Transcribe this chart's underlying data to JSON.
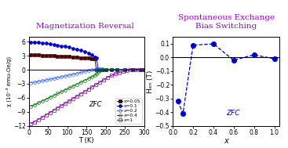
{
  "title_left": "Magnetization Reversal",
  "title_right": "Spontaneous Exchange\nBias Switching",
  "title_color": "#9900cc",
  "left_xlabel": "T (K)",
  "left_ylabel": "χ (10⁻³ emu-Oe/g)",
  "left_ylim": [
    -12,
    7
  ],
  "left_xlim": [
    0,
    300
  ],
  "right_xlabel": "x",
  "right_ylabel": "Hₑₙ (T)",
  "right_ylim": [
    -0.5,
    0.15
  ],
  "right_xlim": [
    0,
    1.05
  ],
  "zfc_label": "ZFC",
  "series": [
    {
      "label": "x=0.05",
      "color": "#4a0000",
      "marker": "s",
      "filled": true,
      "T": [
        5,
        15,
        25,
        35,
        45,
        55,
        65,
        75,
        85,
        95,
        105,
        115,
        125,
        135,
        145,
        155,
        165,
        172,
        176,
        181,
        190,
        200,
        215,
        230,
        250,
        270,
        290,
        300
      ],
      "chi": [
        3.2,
        3.18,
        3.14,
        3.1,
        3.06,
        3.02,
        2.98,
        2.93,
        2.88,
        2.83,
        2.78,
        2.72,
        2.66,
        2.6,
        2.54,
        2.47,
        2.4,
        2.33,
        0.05,
        0.02,
        0.01,
        0.01,
        0.0,
        0.0,
        0.0,
        0.0,
        0.0,
        0.0
      ]
    },
    {
      "label": "x=0.1",
      "color": "#0000cc",
      "marker": "o",
      "filled": true,
      "T": [
        5,
        15,
        25,
        35,
        45,
        55,
        65,
        75,
        85,
        95,
        105,
        115,
        125,
        135,
        145,
        155,
        165,
        172,
        176,
        181,
        190,
        200,
        215,
        230,
        250,
        270,
        290,
        300
      ],
      "chi": [
        5.95,
        5.9,
        5.82,
        5.72,
        5.62,
        5.5,
        5.38,
        5.24,
        5.1,
        4.95,
        4.78,
        4.6,
        4.4,
        4.18,
        3.93,
        3.6,
        3.15,
        2.7,
        2.5,
        0.05,
        0.02,
        0.01,
        0.01,
        0.0,
        0.0,
        0.0,
        0.0,
        0.0
      ]
    },
    {
      "label": "x=0.2",
      "color": "#3366ff",
      "marker": "o",
      "filled": false,
      "T": [
        5,
        15,
        25,
        35,
        45,
        55,
        65,
        75,
        85,
        95,
        105,
        115,
        125,
        135,
        145,
        155,
        165,
        172,
        176,
        181,
        185,
        190,
        200,
        215,
        230,
        250,
        270,
        290,
        300
      ],
      "chi": [
        -2.8,
        -2.68,
        -2.52,
        -2.36,
        -2.2,
        -2.04,
        -1.88,
        -1.7,
        -1.52,
        -1.34,
        -1.15,
        -0.96,
        -0.77,
        -0.58,
        -0.39,
        -0.2,
        -0.03,
        0.08,
        0.16,
        0.2,
        0.18,
        0.12,
        0.06,
        0.03,
        0.01,
        0.0,
        0.0,
        0.0,
        0.0
      ]
    },
    {
      "label": "x=0.4",
      "color": "#007700",
      "marker": "o",
      "filled": false,
      "T": [
        5,
        15,
        25,
        35,
        45,
        55,
        65,
        75,
        85,
        95,
        105,
        115,
        125,
        135,
        145,
        155,
        165,
        172,
        176,
        181,
        185,
        190,
        200,
        215,
        230,
        250,
        270,
        290,
        300
      ],
      "chi": [
        -7.8,
        -7.52,
        -7.1,
        -6.7,
        -6.3,
        -5.9,
        -5.5,
        -5.1,
        -4.7,
        -4.3,
        -3.9,
        -3.5,
        -3.1,
        -2.7,
        -2.3,
        -1.9,
        -1.5,
        -1.15,
        -0.85,
        -0.5,
        -0.2,
        0.0,
        0.04,
        0.02,
        0.01,
        0.0,
        0.0,
        0.0,
        0.0
      ]
    },
    {
      "label": "x=1",
      "color": "#8800aa",
      "marker": "s",
      "filled": false,
      "T": [
        5,
        15,
        25,
        35,
        45,
        55,
        65,
        75,
        85,
        95,
        105,
        115,
        125,
        135,
        145,
        155,
        165,
        175,
        185,
        195,
        205,
        215,
        225,
        235,
        245,
        255,
        265,
        275,
        285,
        295,
        300
      ],
      "chi": [
        -11.5,
        -11.15,
        -10.65,
        -10.15,
        -9.65,
        -9.15,
        -8.65,
        -8.15,
        -7.65,
        -7.15,
        -6.65,
        -6.15,
        -5.65,
        -5.15,
        -4.65,
        -4.15,
        -3.65,
        -3.15,
        -2.65,
        -2.15,
        -1.65,
        -1.25,
        -0.9,
        -0.6,
        -0.35,
        -0.15,
        -0.02,
        0.0,
        0.0,
        0.0,
        0.0
      ]
    }
  ],
  "right_data": {
    "x": [
      0.05,
      0.1,
      0.2,
      0.4,
      0.6,
      0.8,
      1.0
    ],
    "Heb": [
      -0.32,
      -0.41,
      0.09,
      0.1,
      -0.02,
      0.02,
      -0.01
    ],
    "color": "#0000cc"
  }
}
